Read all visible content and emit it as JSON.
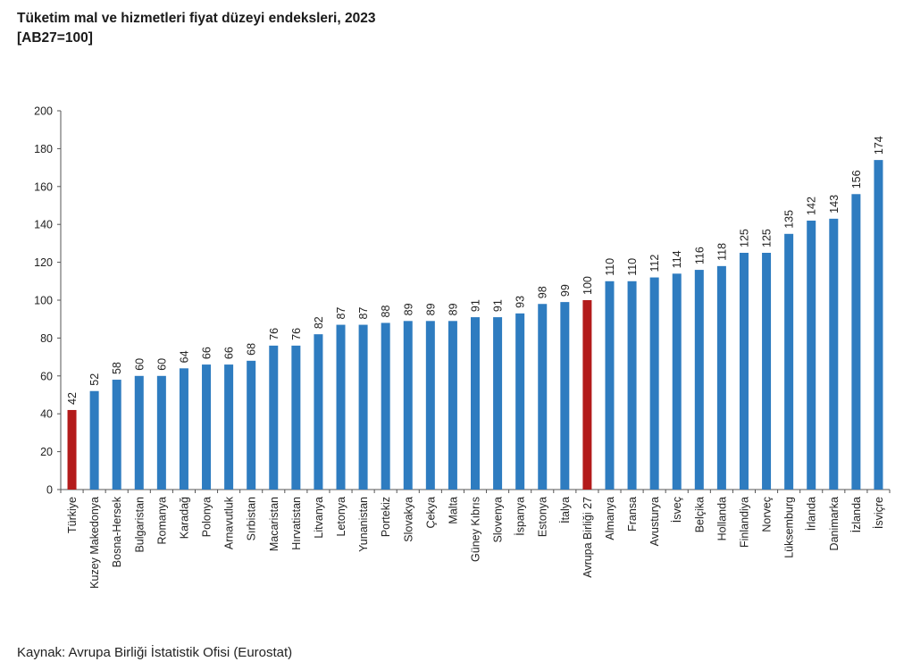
{
  "header": {
    "title": "Tüketim mal ve hizmetleri fiyat düzeyi endeksleri, 2023",
    "subtitle": "[AB27=100]"
  },
  "footer": {
    "source": "Kaynak: Avrupa Birliği İstatistik Ofisi (Eurostat)"
  },
  "colors": {
    "bar_default": "#2e7cc0",
    "bar_highlight": "#b31b1b"
  },
  "chart_data": {
    "type": "bar",
    "title": "Tüketim mal ve hizmetleri fiyat düzeyi endeksleri, 2023",
    "subtitle": "[AB27=100]",
    "xlabel": "",
    "ylabel": "",
    "ylim": [
      0,
      200
    ],
    "yticks": [
      0,
      20,
      40,
      60,
      80,
      100,
      120,
      140,
      160,
      180,
      200
    ],
    "grid": false,
    "legend": "none",
    "categories": [
      "Türkiye",
      "Kuzey Makedonya",
      "Bosna-Hersek",
      "Bulgaristan",
      "Romanya",
      "Karadağ",
      "Polonya",
      "Arnavutluk",
      "Sırbistan",
      "Macaristan",
      "Hırvatistan",
      "Litvanya",
      "Letonya",
      "Yunanistan",
      "Portekiz",
      "Slovakya",
      "Çekya",
      "Malta",
      "Güney Kıbrıs",
      "Slovenya",
      "İspanya",
      "Estonya",
      "İtalya",
      "Avrupa Birliği 27",
      "Almanya",
      "Fransa",
      "Avusturya",
      "İsveç",
      "Belçika",
      "Hollanda",
      "Finlandiya",
      "Norveç",
      "Lüksemburg",
      "İrlanda",
      "Danimarka",
      "İzlanda",
      "İsviçre"
    ],
    "values": [
      42,
      52,
      58,
      60,
      60,
      64,
      66,
      66,
      68,
      76,
      76,
      82,
      87,
      87,
      88,
      89,
      89,
      89,
      91,
      91,
      93,
      98,
      99,
      100,
      110,
      110,
      112,
      114,
      116,
      118,
      125,
      125,
      135,
      142,
      143,
      156,
      174
    ],
    "highlighted": [
      "Türkiye",
      "Avrupa Birliği 27"
    ]
  }
}
